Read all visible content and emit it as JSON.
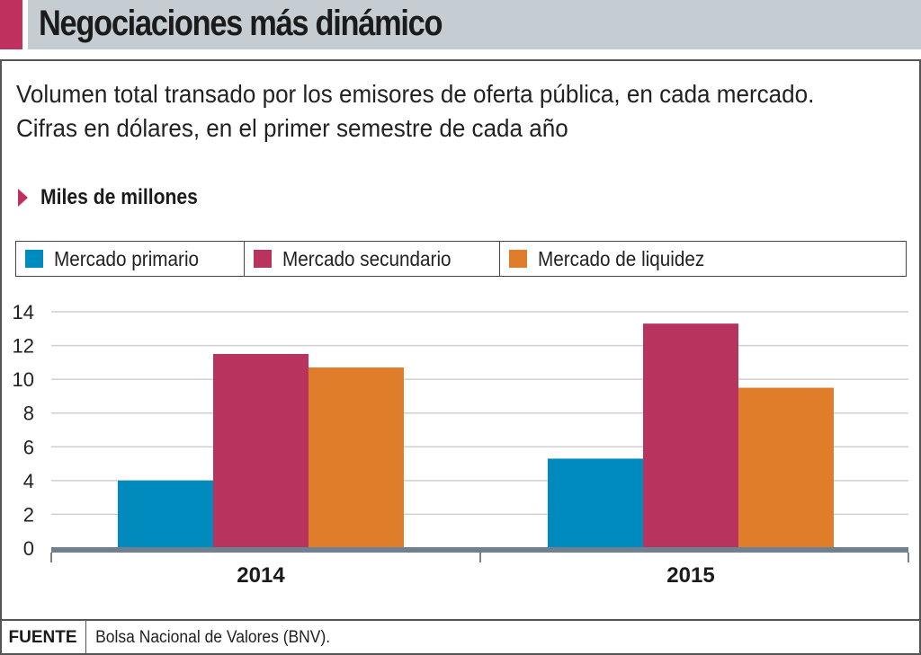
{
  "header": {
    "title": "Negociaciones más dinámico",
    "accent_color": "#c0305f",
    "bg_color": "#c5ccd2"
  },
  "subtitle": "Volumen total transado por los emisores de oferta pública, en cada mercado. Cifras en dólares, en el primer semestre de cada año",
  "unit": {
    "label": "Miles de millones",
    "icon": "triangle-right-icon"
  },
  "legend": [
    {
      "label": "Mercado primario",
      "color": "#008bbf"
    },
    {
      "label": "Mercado secundario",
      "color": "#b8345f"
    },
    {
      "label": "Mercado de liquidez",
      "color": "#e07d2a"
    }
  ],
  "source": {
    "key": "FUENTE",
    "value": "Bolsa Nacional de Valores (BNV)."
  },
  "chart_data": {
    "type": "bar",
    "title": "Negociaciones más dinámico",
    "subtitle": "Volumen total transado por los emisores de oferta pública, en cada mercado. Cifras en dólares, en el primer semestre de cada año",
    "xlabel": "",
    "ylabel": "Miles de millones",
    "categories": [
      "2014",
      "2015"
    ],
    "series": [
      {
        "name": "Mercado primario",
        "color": "#008bbf",
        "values": [
          4.0,
          5.3
        ]
      },
      {
        "name": "Mercado secundario",
        "color": "#b8345f",
        "values": [
          11.5,
          13.3
        ]
      },
      {
        "name": "Mercado de liquidez",
        "color": "#e07d2a",
        "values": [
          10.7,
          9.5
        ]
      }
    ],
    "ylim": [
      0,
      14
    ],
    "yticks": [
      0,
      2,
      4,
      6,
      8,
      10,
      12,
      14
    ],
    "grid": true,
    "legend_position": "top"
  }
}
